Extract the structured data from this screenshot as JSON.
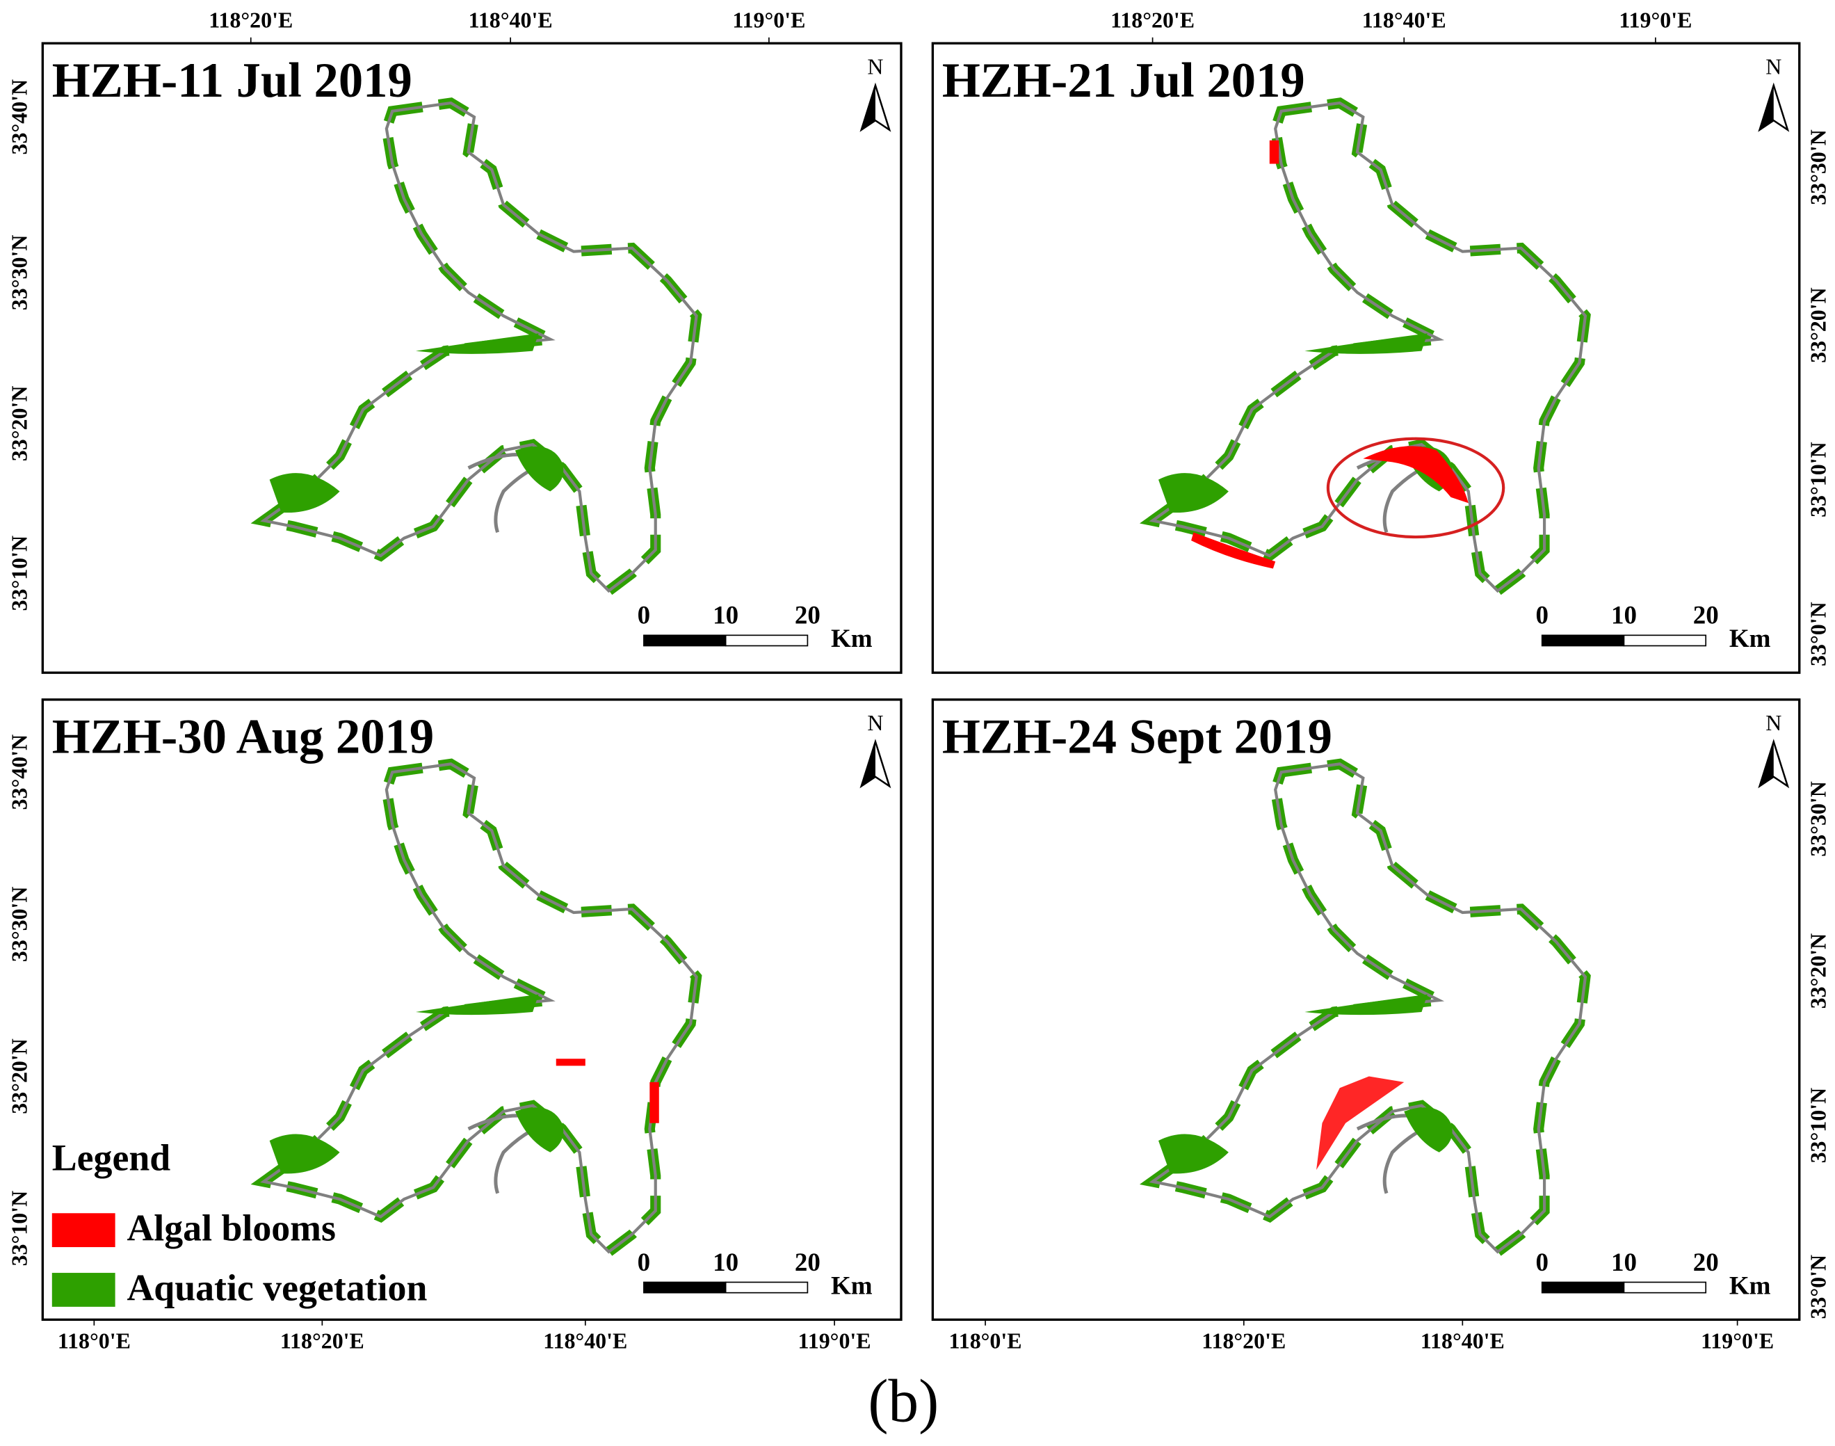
{
  "north_label": "N",
  "scale_bar": {
    "labels": [
      "0",
      "10",
      "20"
    ],
    "unit": "Km"
  },
  "legend": {
    "title": "Legend",
    "items": [
      "Algal blooms",
      "Aquatic vegetation"
    ]
  },
  "panels": [
    {
      "title": "HZH-11 Jul 2019",
      "x_ticks": [
        "118°20'E",
        "118°40'E",
        "119°0'E"
      ],
      "y_ticks": [
        "33°40'N",
        "33°30'N",
        "33°20'N",
        "33°10'N"
      ]
    },
    {
      "title": "HZH-21 Jul 2019",
      "x_ticks": [
        "118°20'E",
        "118°40'E",
        "119°0'E"
      ],
      "y_ticks": [
        "33°30'N",
        "33°20'N",
        "33°10'N",
        "33°0'N"
      ]
    },
    {
      "title": "HZH-30 Aug 2019",
      "x_ticks": [
        "118°0'E",
        "118°20'E",
        "118°40'E",
        "119°0'E"
      ],
      "y_ticks": [
        "33°40'N",
        "33°30'N",
        "33°20'N",
        "33°10'N"
      ]
    },
    {
      "title": "HZH-24 Sept 2019",
      "x_ticks": [
        "118°0'E",
        "118°20'E",
        "118°40'E",
        "119°0'E"
      ],
      "y_ticks": [
        "33°30'N",
        "33°20'N",
        "33°10'N",
        "33°0'N"
      ]
    }
  ],
  "caption": "(b)"
}
